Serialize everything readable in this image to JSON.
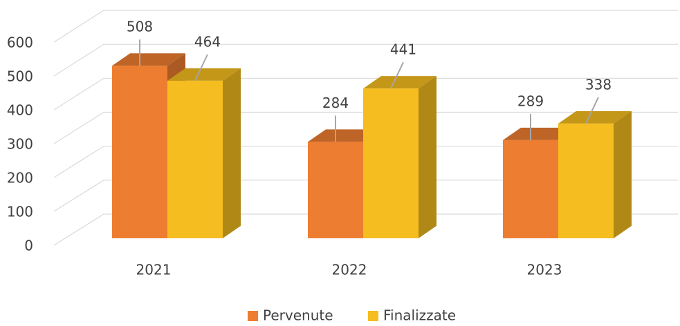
{
  "chart_data": {
    "type": "bar3d",
    "categories": [
      "2021",
      "2022",
      "2023"
    ],
    "series": [
      {
        "name": "Pervenute",
        "color": "#ed7d31",
        "values": [
          508,
          284,
          289
        ]
      },
      {
        "name": "Finalizzate",
        "color": "#f5bd1f",
        "values": [
          464,
          441,
          338
        ]
      }
    ],
    "ylim": [
      0,
      600
    ],
    "yticks": [
      0,
      100,
      200,
      300,
      400,
      500,
      600
    ],
    "grid": true,
    "legend": "bottom"
  }
}
